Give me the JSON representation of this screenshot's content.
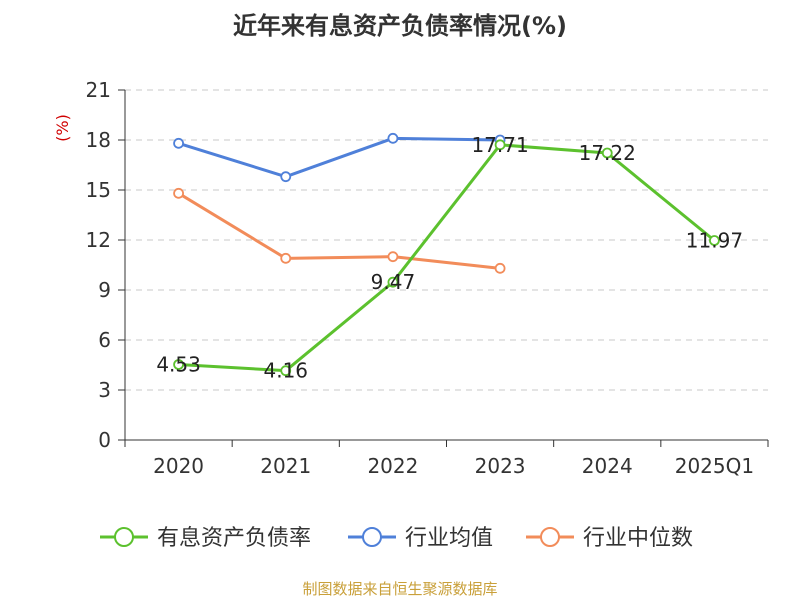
{
  "chart_data": {
    "type": "line",
    "title": "近年来有息资产负债率情况(%)",
    "ylabel": "(%)",
    "categories": [
      "2020",
      "2021",
      "2022",
      "2023",
      "2024",
      "2025Q1"
    ],
    "ylim": [
      0,
      21
    ],
    "yticks": [
      0,
      3,
      6,
      9,
      12,
      15,
      18,
      21
    ],
    "grid": true,
    "legend_position": "bottom",
    "series": [
      {
        "name": "有息资产负债率",
        "color": "#5cc12e",
        "values": [
          4.53,
          4.16,
          9.47,
          17.71,
          17.22,
          11.97
        ],
        "labels": [
          "4.53",
          "4.16",
          "9.47",
          "17.71",
          "17.22",
          "11.97"
        ]
      },
      {
        "name": "行业均值",
        "color": "#4f80d9",
        "values": [
          17.8,
          15.8,
          18.1,
          18.0,
          null,
          null
        ],
        "labels": []
      },
      {
        "name": "行业中位数",
        "color": "#f28c5a",
        "values": [
          14.8,
          10.9,
          11.0,
          10.3,
          null,
          null
        ],
        "labels": []
      }
    ]
  },
  "source": "制图数据来自恒生聚源数据库"
}
